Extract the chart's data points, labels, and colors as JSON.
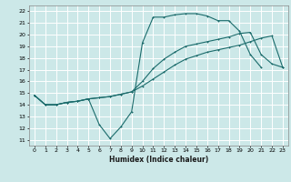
{
  "xlabel": "Humidex (Indice chaleur)",
  "ylabel": "",
  "bg_color": "#cce8e8",
  "grid_color": "#ffffff",
  "line_color": "#1a6b6b",
  "xlim": [
    -0.5,
    23.5
  ],
  "ylim": [
    10.5,
    22.5
  ],
  "xticks": [
    0,
    1,
    2,
    3,
    4,
    5,
    6,
    7,
    8,
    9,
    10,
    11,
    12,
    13,
    14,
    15,
    16,
    17,
    18,
    19,
    20,
    21,
    22,
    23
  ],
  "yticks": [
    11,
    12,
    13,
    14,
    15,
    16,
    17,
    18,
    19,
    20,
    21,
    22
  ],
  "line1_y": [
    14.8,
    14.0,
    14.0,
    14.2,
    14.3,
    14.5,
    12.3,
    11.1,
    12.1,
    13.4,
    19.3,
    21.5,
    21.5,
    21.7,
    21.8,
    21.8,
    21.6,
    21.2,
    21.2,
    20.3,
    18.3,
    17.2,
    null,
    null
  ],
  "line2_y": [
    14.8,
    14.0,
    14.0,
    14.2,
    14.3,
    14.5,
    14.6,
    14.7,
    14.9,
    15.1,
    15.6,
    16.2,
    16.8,
    17.4,
    17.9,
    18.2,
    18.5,
    18.7,
    18.9,
    19.1,
    19.4,
    19.7,
    19.9,
    17.2
  ],
  "line3_y": [
    14.8,
    14.0,
    14.0,
    14.2,
    14.3,
    14.5,
    14.6,
    14.7,
    14.9,
    15.1,
    16.0,
    17.1,
    17.9,
    18.5,
    19.0,
    19.2,
    19.4,
    19.6,
    19.8,
    20.1,
    20.2,
    18.3,
    17.5,
    17.2
  ]
}
